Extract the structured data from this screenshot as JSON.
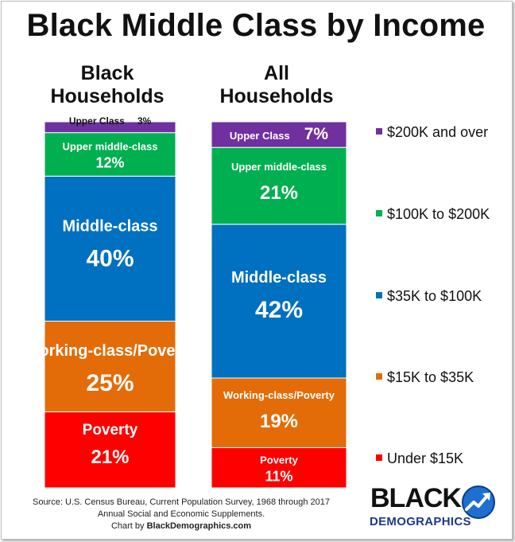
{
  "title": "Black Middle Class by Income",
  "chart_data": {
    "type": "bar",
    "stacked": true,
    "unit": "%",
    "categories": [
      "Black Households",
      "All Households"
    ],
    "category_lines": [
      [
        "Black",
        "Households"
      ],
      [
        "All",
        "Households"
      ]
    ],
    "series": [
      {
        "name": "Poverty",
        "legend": "Under $15K",
        "color": "#ff0000",
        "values": [
          21,
          11
        ]
      },
      {
        "name": "Working-class/Poverty",
        "legend": "$15K to $35K",
        "color": "#e36c09",
        "values": [
          25,
          19
        ]
      },
      {
        "name": "Middle-class",
        "legend": "$35K to $100K",
        "color": "#0070c0",
        "values": [
          40,
          42
        ]
      },
      {
        "name": "Upper middle-class",
        "legend": "$100K to $200K",
        "color": "#00b050",
        "values": [
          12,
          21
        ]
      },
      {
        "name": "Upper Class",
        "legend": "$200K and over",
        "color": "#7030a0",
        "values": [
          3,
          7
        ]
      }
    ],
    "legend_order": [
      4,
      3,
      2,
      1,
      0
    ],
    "legend_position": "right"
  },
  "source": {
    "line1": "Source:  U.S. Census Bureau, Current Population Survey, 1968 through 2017",
    "line2": "Annual Social and Economic Supplements.",
    "credit_prefix": "Chart by ",
    "credit_site": "BlackDemographics.com"
  },
  "logo": {
    "word1": "BLACK",
    "word2": "DEMOGRAPHICS"
  }
}
